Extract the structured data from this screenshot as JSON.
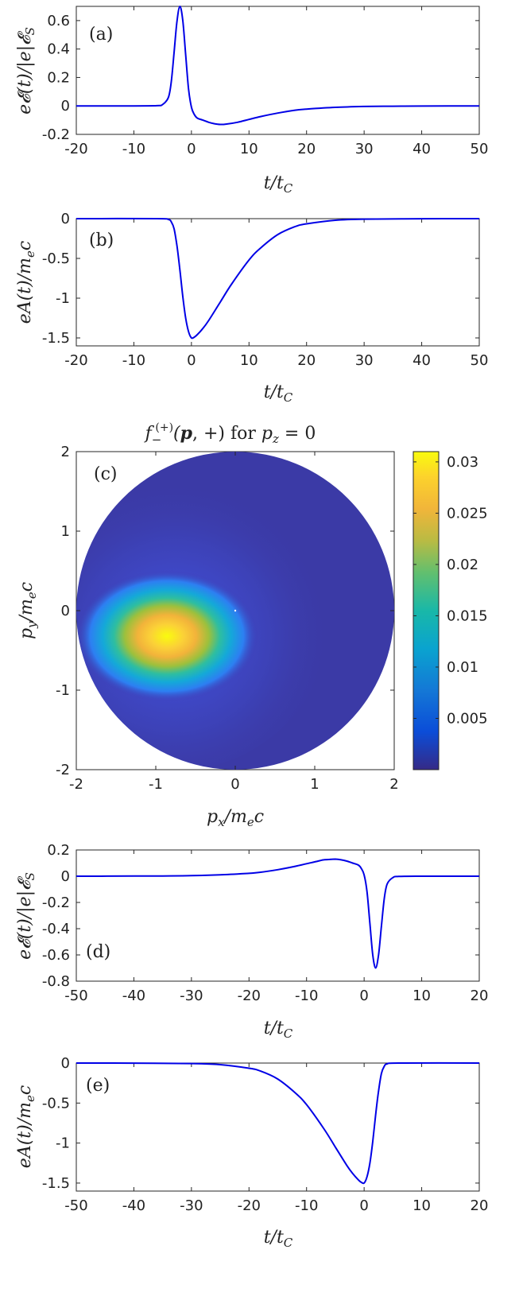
{
  "chart_data": [
    {
      "type": "line",
      "panel_label": "(a)",
      "xlabel": "t/t_C",
      "ylabel": "e𝓔(t)/|e|𝓔_S",
      "xlim": [
        -20,
        50
      ],
      "ylim": [
        -0.2,
        0.7
      ],
      "xticks": [
        -20,
        -10,
        0,
        10,
        20,
        30,
        40,
        50
      ],
      "yticks": [
        -0.2,
        0,
        0.2,
        0.4,
        0.6
      ],
      "xtick_labels": [
        "-20",
        "-10",
        "0",
        "10",
        "20",
        "30",
        "40",
        "50"
      ],
      "ytick_labels": [
        "-0.2",
        "0",
        "0.2",
        "0.4",
        "0.6"
      ],
      "series": [
        {
          "color": "#0000e6",
          "x": [
            -20,
            -10,
            -6,
            -5,
            -4,
            -3.5,
            -3,
            -2.5,
            -2,
            -1.5,
            -1,
            -0.5,
            0,
            0.5,
            1,
            2,
            3,
            4,
            5,
            6,
            8,
            10,
            12,
            15,
            18,
            20,
            25,
            30,
            35,
            40,
            50
          ],
          "y": [
            0,
            0,
            0.002,
            0.01,
            0.06,
            0.17,
            0.38,
            0.6,
            0.7,
            0.6,
            0.36,
            0.12,
            -0.01,
            -0.06,
            -0.085,
            -0.1,
            -0.115,
            -0.125,
            -0.13,
            -0.128,
            -0.115,
            -0.095,
            -0.075,
            -0.05,
            -0.03,
            -0.022,
            -0.01,
            -0.004,
            -0.002,
            -0.001,
            0
          ]
        }
      ]
    },
    {
      "type": "line",
      "panel_label": "(b)",
      "xlabel": "t/t_C",
      "ylabel": "eA(t)/m_e c",
      "xlim": [
        -20,
        50
      ],
      "ylim": [
        -1.6,
        0
      ],
      "xticks": [
        -20,
        -10,
        0,
        10,
        20,
        30,
        40,
        50
      ],
      "yticks": [
        -1.5,
        -1,
        -0.5,
        0
      ],
      "xtick_labels": [
        "-20",
        "-10",
        "0",
        "10",
        "20",
        "30",
        "40",
        "50"
      ],
      "ytick_labels": [
        "-1.5",
        "-1",
        "-0.5",
        "0"
      ],
      "series": [
        {
          "color": "#0000e6",
          "x": [
            -20,
            -6,
            -4,
            -3.5,
            -3,
            -2.5,
            -2,
            -1.5,
            -1,
            -0.5,
            0,
            0.5,
            1,
            2,
            3,
            5,
            7,
            10,
            12,
            15,
            18,
            20,
            25,
            30,
            40,
            50
          ],
          "y": [
            0,
            0,
            -0.01,
            -0.04,
            -0.13,
            -0.35,
            -0.65,
            -0.98,
            -1.25,
            -1.42,
            -1.5,
            -1.49,
            -1.46,
            -1.38,
            -1.28,
            -1.05,
            -0.82,
            -0.52,
            -0.37,
            -0.2,
            -0.1,
            -0.065,
            -0.02,
            -0.006,
            -0.001,
            0
          ]
        }
      ]
    },
    {
      "type": "heatmap",
      "panel_label": "(c)",
      "title": "f_-^(+)(p,+) for p_z = 0",
      "xlabel": "p_x/m_e c",
      "ylabel": "p_y/m_e c",
      "xlim": [
        -2,
        2
      ],
      "ylim": [
        -2,
        2
      ],
      "xticks": [
        -2,
        -1,
        0,
        1,
        2
      ],
      "yticks": [
        -2,
        -1,
        0,
        1,
        2
      ],
      "xtick_labels": [
        "-2",
        "-1",
        "0",
        "1",
        "2"
      ],
      "ytick_labels": [
        "-2",
        "-1",
        "0",
        "1",
        "2"
      ],
      "domain": "disk of radius 2 centered at origin",
      "peak": {
        "px": -0.85,
        "py": 0,
        "value": 0.031
      },
      "colorbar": {
        "range": [
          0,
          0.031
        ],
        "ticks": [
          0.005,
          0.01,
          0.015,
          0.02,
          0.025,
          0.03
        ],
        "tick_labels": [
          "0.005",
          "0.01",
          "0.015",
          "0.02",
          "0.025",
          "0.03"
        ],
        "colormap": "parula"
      }
    },
    {
      "type": "line",
      "panel_label": "(d)",
      "xlabel": "t/t_C",
      "ylabel": "e𝓔(t)/|e|𝓔_S",
      "xlim": [
        -50,
        20
      ],
      "ylim": [
        -0.8,
        0.2
      ],
      "xticks": [
        -50,
        -40,
        -30,
        -20,
        -10,
        0,
        10,
        20
      ],
      "yticks": [
        -0.8,
        -0.6,
        -0.4,
        -0.2,
        0,
        0.2
      ],
      "xtick_labels": [
        "-50",
        "-40",
        "-30",
        "-20",
        "-10",
        "0",
        "10",
        "20"
      ],
      "ytick_labels": [
        "-0.8",
        "-0.6",
        "-0.4",
        "-0.2",
        "0",
        "0.2"
      ],
      "series": [
        {
          "color": "#0000e6",
          "x": [
            -50,
            -40,
            -35,
            -30,
            -25,
            -20,
            -18,
            -15,
            -12,
            -10,
            -8,
            -7,
            -6,
            -5,
            -4,
            -3,
            -2,
            -1,
            -0.5,
            0,
            0.5,
            1,
            1.5,
            2,
            2.5,
            3,
            3.5,
            4,
            5,
            6,
            10,
            20
          ],
          "y": [
            0,
            0.001,
            0.002,
            0.004,
            0.01,
            0.022,
            0.03,
            0.05,
            0.075,
            0.095,
            0.115,
            0.125,
            0.128,
            0.13,
            0.125,
            0.115,
            0.1,
            0.085,
            0.06,
            0.01,
            -0.12,
            -0.36,
            -0.6,
            -0.7,
            -0.6,
            -0.38,
            -0.17,
            -0.06,
            -0.01,
            -0.002,
            0,
            0
          ]
        }
      ]
    },
    {
      "type": "line",
      "panel_label": "(e)",
      "xlabel": "t/t_C",
      "ylabel": "eA(t)/m_e c",
      "xlim": [
        -50,
        20
      ],
      "ylim": [
        -1.6,
        0
      ],
      "xticks": [
        -50,
        -40,
        -30,
        -20,
        -10,
        0,
        10,
        20
      ],
      "yticks": [
        -1.5,
        -1,
        -0.5,
        0
      ],
      "xtick_labels": [
        "-50",
        "-40",
        "-30",
        "-20",
        "-10",
        "0",
        "10",
        "20"
      ],
      "ytick_labels": [
        "-1.5",
        "-1",
        "-0.5",
        "0"
      ],
      "series": [
        {
          "color": "#0000e6",
          "x": [
            -50,
            -40,
            -30,
            -25,
            -20,
            -18,
            -15,
            -12,
            -10,
            -7,
            -5,
            -3,
            -2,
            -1,
            -0.5,
            0,
            0.5,
            1,
            1.5,
            2,
            2.5,
            3,
            3.5,
            4,
            6,
            20
          ],
          "y": [
            0,
            -0.001,
            -0.006,
            -0.02,
            -0.065,
            -0.1,
            -0.2,
            -0.37,
            -0.52,
            -0.82,
            -1.05,
            -1.28,
            -1.38,
            -1.46,
            -1.49,
            -1.5,
            -1.42,
            -1.25,
            -0.98,
            -0.65,
            -0.35,
            -0.13,
            -0.04,
            -0.01,
            0,
            0
          ]
        }
      ]
    }
  ]
}
